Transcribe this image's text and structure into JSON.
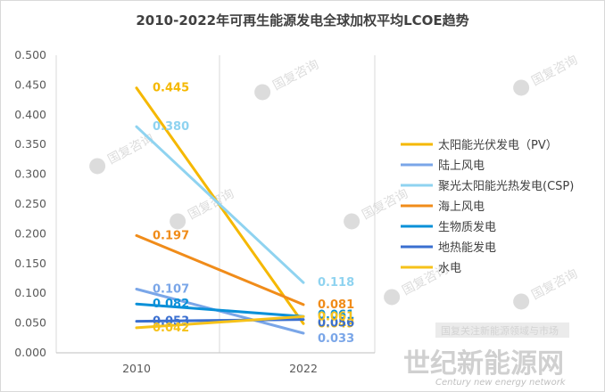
{
  "page": {
    "title": "2010-2022年可再生能源发电全球加权平均LCOE趋势"
  },
  "watermarks": {
    "brand_cn": "国复咨询",
    "banner": "国复关注新能源领域与市场",
    "site_cn": "世纪新能源网",
    "site_en": "Century new energy network"
  },
  "chart_data": {
    "type": "line",
    "title": "2010-2022年可再生能源发电全球加权平均LCOE趋势",
    "xlabel": "",
    "ylabel": "",
    "categories": [
      "2010",
      "2022"
    ],
    "ylim": [
      0,
      0.5
    ],
    "yticks": [
      "0.000",
      "0.050",
      "0.100",
      "0.150",
      "0.200",
      "0.250",
      "0.300",
      "0.350",
      "0.400",
      "0.450",
      "0.500"
    ],
    "grid": "vertical",
    "legend_position": "right",
    "series": [
      {
        "name": "太阳能光伏发电（PV）",
        "values": [
          0.445,
          0.049
        ],
        "labels": [
          "0.445",
          "0.049"
        ],
        "color": "#f5b800"
      },
      {
        "name": "陆上风电",
        "values": [
          0.107,
          0.033
        ],
        "labels": [
          "0.107",
          "0.033"
        ],
        "color": "#7aa6e8"
      },
      {
        "name": "聚光太阳能光热发电(CSP)",
        "values": [
          0.38,
          0.118
        ],
        "labels": [
          "0.380",
          "0.118"
        ],
        "color": "#8fd3f0"
      },
      {
        "name": "海上风电",
        "values": [
          0.197,
          0.081
        ],
        "labels": [
          "0.197",
          "0.081"
        ],
        "color": "#f08c1a"
      },
      {
        "name": "生物质发电",
        "values": [
          0.082,
          0.061
        ],
        "labels": [
          "0.082",
          "0.061"
        ],
        "color": "#0a90d8"
      },
      {
        "name": "地热能发电",
        "values": [
          0.053,
          0.056
        ],
        "labels": [
          "0.053",
          "0.056"
        ],
        "color": "#3a6fd0"
      },
      {
        "name": "水电",
        "values": [
          0.042,
          0.061
        ],
        "labels": [
          "0.042",
          "0.061"
        ],
        "color": "#f6c21a"
      }
    ]
  }
}
